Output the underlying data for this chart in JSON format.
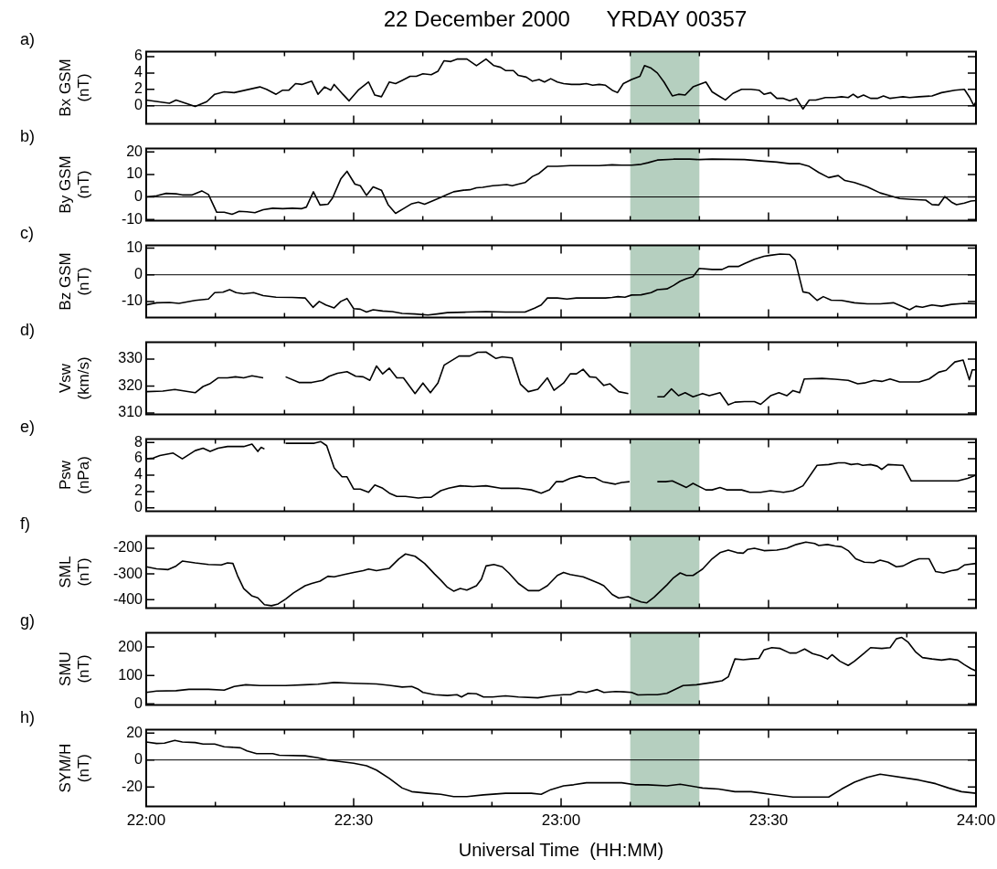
{
  "chart_data": [
    {
      "type": "line",
      "title": "22 December 2000      YRDAY 00357",
      "ylabel": "Bx GSM (nT)",
      "annotations": [
        "a)"
      ],
      "color": "#000000",
      "xlim": [
        22,
        24
      ],
      "ylim": [
        -2.2,
        6.6
      ],
      "yticks": [
        0,
        2,
        4,
        6
      ],
      "tick_labels": "y",
      "xticks": [
        22,
        {
          "value": 22.16667,
          "label": null
        },
        {
          "value": 22.33333,
          "label": null
        },
        22.5,
        {
          "value": 22.66667,
          "label": null
        },
        {
          "value": 22.83333,
          "label": null
        },
        23,
        {
          "value": 23.16667,
          "label": null
        },
        {
          "value": 23.33333,
          "label": null
        },
        23.5,
        {
          "value": 23.66667,
          "label": null
        },
        {
          "value": 23.83333,
          "label": null
        },
        24
      ],
      "bands": [
        {
          "axis": "x",
          "from": 23.16667,
          "to": 23.33333,
          "color": "#b5cfbf"
        }
      ],
      "ref_lines": [
        {
          "axis": "y",
          "value": 0,
          "color": "#000000"
        }
      ],
      "x": [
        22.0,
        22.056,
        22.072,
        22.118,
        22.146,
        22.165,
        22.188,
        22.212,
        22.274,
        22.29,
        22.313,
        22.329,
        22.344,
        22.36,
        22.375,
        22.399,
        22.414,
        22.43,
        22.445,
        22.453,
        22.474,
        22.489,
        22.511,
        22.536,
        22.551,
        22.567,
        22.586,
        22.601,
        22.617,
        22.636,
        22.651,
        22.667,
        22.687,
        22.703,
        22.718,
        22.734,
        22.749,
        22.773,
        22.796,
        22.819,
        22.838,
        22.854,
        22.866,
        22.885,
        22.897,
        22.916,
        22.931,
        22.947,
        22.96,
        22.975,
        22.991,
        23.006,
        23.025,
        23.045,
        23.061,
        23.076,
        23.092,
        23.107,
        23.123,
        23.136,
        23.15,
        23.17,
        23.19,
        23.201,
        23.217,
        23.232,
        23.248,
        23.268,
        23.283,
        23.299,
        23.318,
        23.349,
        23.364,
        23.38,
        23.396,
        23.414,
        23.435,
        23.458,
        23.477,
        23.489,
        23.505,
        23.52,
        23.536,
        23.551,
        23.567,
        23.583,
        23.598,
        23.614,
        23.637,
        23.66,
        23.676,
        23.692,
        23.704,
        23.715,
        23.729,
        23.746,
        23.762,
        23.777,
        23.793,
        23.808,
        23.824,
        23.84,
        23.863,
        23.894,
        23.917,
        23.949,
        23.972,
        23.985,
        23.995,
        24.0
      ],
      "values": [
        0.7,
        0.3,
        0.7,
        -0.1,
        0.5,
        1.4,
        1.7,
        1.6,
        2.3,
        2.0,
        1.4,
        1.9,
        1.9,
        2.7,
        2.6,
        3.0,
        1.4,
        2.3,
        1.9,
        2.6,
        1.4,
        0.6,
        1.9,
        2.9,
        1.3,
        1.1,
        2.9,
        2.7,
        3.1,
        3.6,
        3.6,
        3.9,
        3.8,
        4.2,
        5.5,
        5.4,
        5.7,
        5.7,
        4.9,
        5.7,
        4.9,
        4.7,
        4.3,
        4.3,
        3.7,
        3.5,
        3.0,
        3.2,
        2.9,
        3.3,
        2.9,
        2.7,
        2.6,
        2.6,
        2.7,
        2.5,
        2.6,
        2.5,
        1.9,
        1.6,
        2.7,
        3.2,
        3.6,
        4.9,
        4.6,
        4.0,
        2.9,
        1.2,
        1.4,
        1.3,
        2.3,
        2.9,
        1.7,
        1.2,
        0.7,
        1.5,
        2.0,
        2.0,
        1.9,
        1.4,
        1.6,
        0.9,
        0.9,
        0.6,
        0.9,
        -0.4,
        0.7,
        0.7,
        1.0,
        1.0,
        1.1,
        1.0,
        1.4,
        1.0,
        1.3,
        0.9,
        0.9,
        1.2,
        0.9,
        1.0,
        1.1,
        1.0,
        1.1,
        1.2,
        1.6,
        1.9,
        2.0,
        1.0,
        0.0,
        0.5
      ]
    },
    {
      "type": "line",
      "ylabel": "By GSM (nT)",
      "annotations": [
        "b)"
      ],
      "color": "#000000",
      "xlim": [
        22,
        24
      ],
      "ylim": [
        -10.5,
        21.5
      ],
      "yticks": [
        -10,
        0,
        10,
        20
      ],
      "tick_labels": "y",
      "xticks": [
        22,
        {
          "value": 22.16667,
          "label": null
        },
        {
          "value": 22.33333,
          "label": null
        },
        22.5,
        {
          "value": 22.66667,
          "label": null
        },
        {
          "value": 22.83333,
          "label": null
        },
        23,
        {
          "value": 23.16667,
          "label": null
        },
        {
          "value": 23.33333,
          "label": null
        },
        23.5,
        {
          "value": 23.66667,
          "label": null
        },
        {
          "value": 23.83333,
          "label": null
        },
        24
      ],
      "bands": [
        {
          "axis": "x",
          "from": 23.16667,
          "to": 23.33333,
          "color": "#b5cfbf"
        }
      ],
      "ref_lines": [
        {
          "axis": "y",
          "value": 0,
          "color": "#000000"
        }
      ],
      "x": [
        22.0,
        22.025,
        22.048,
        22.072,
        22.087,
        22.111,
        22.134,
        22.15,
        22.17,
        22.188,
        22.207,
        22.224,
        22.243,
        22.262,
        22.282,
        22.305,
        22.329,
        22.352,
        22.375,
        22.386,
        22.403,
        22.419,
        22.438,
        22.449,
        22.469,
        22.484,
        22.503,
        22.516,
        22.531,
        22.547,
        22.567,
        22.583,
        22.601,
        22.62,
        22.64,
        22.656,
        22.671,
        22.692,
        22.71,
        22.726,
        22.741,
        22.765,
        22.78,
        22.796,
        22.811,
        22.835,
        22.85,
        22.869,
        22.882,
        22.897,
        22.913,
        22.931,
        22.947,
        22.967,
        22.991,
        23.022,
        23.053,
        23.092,
        23.123,
        23.146,
        23.17,
        23.193,
        23.209,
        23.232,
        23.271,
        23.31,
        23.333,
        23.364,
        23.442,
        23.489,
        23.52,
        23.551,
        23.574,
        23.598,
        23.621,
        23.645,
        23.668,
        23.684,
        23.707,
        23.738,
        23.769,
        23.793,
        23.816,
        23.847,
        23.879,
        23.894,
        23.91,
        23.925,
        23.941,
        23.953,
        23.972,
        23.988,
        24.0
      ],
      "values": [
        0,
        0.5,
        1.6,
        1.4,
        0.9,
        0.9,
        2.7,
        1.1,
        -6.8,
        -6.8,
        -7.7,
        -6.4,
        -6.6,
        -7.0,
        -5.7,
        -5.0,
        -5.2,
        -5.0,
        -5.2,
        -4.5,
        2.3,
        -3.6,
        -3.2,
        -0.5,
        8.0,
        11.4,
        5.7,
        5.0,
        0.7,
        4.5,
        3.0,
        -3.4,
        -7.3,
        -5.2,
        -3.0,
        -2.3,
        -3.2,
        -1.6,
        -0.2,
        1.1,
        2.3,
        3.0,
        3.2,
        4.1,
        4.3,
        5.0,
        5.2,
        5.5,
        5.0,
        5.7,
        6.4,
        9.1,
        10.5,
        13.6,
        13.6,
        13.9,
        13.9,
        13.9,
        14.3,
        14.1,
        14.1,
        14.5,
        15.2,
        16.4,
        16.8,
        16.8,
        16.6,
        16.8,
        16.6,
        15.9,
        15.5,
        14.8,
        14.8,
        13.6,
        10.9,
        8.6,
        9.5,
        7.3,
        6.4,
        4.5,
        1.8,
        0.5,
        -0.7,
        -1.1,
        -1.4,
        -3.4,
        -3.6,
        0.2,
        -2.3,
        -3.4,
        -2.7,
        -1.8,
        -1.6
      ]
    },
    {
      "type": "line",
      "ylabel": "Bz GSM (nT)",
      "annotations": [
        "c)"
      ],
      "color": "#000000",
      "xlim": [
        22,
        24
      ],
      "ylim": [
        -16,
        11
      ],
      "yticks": [
        -10,
        0,
        10
      ],
      "tick_labels": "y",
      "xticks": [
        22,
        {
          "value": 22.16667,
          "label": null
        },
        {
          "value": 22.33333,
          "label": null
        },
        22.5,
        {
          "value": 22.66667,
          "label": null
        },
        {
          "value": 22.83333,
          "label": null
        },
        23,
        {
          "value": 23.16667,
          "label": null
        },
        {
          "value": 23.33333,
          "label": null
        },
        23.5,
        {
          "value": 23.66667,
          "label": null
        },
        {
          "value": 23.83333,
          "label": null
        },
        24
      ],
      "bands": [
        {
          "axis": "x",
          "from": 23.16667,
          "to": 23.33333,
          "color": "#b5cfbf"
        }
      ],
      "ref_lines": [
        {
          "axis": "y",
          "value": 0,
          "color": "#000000"
        }
      ],
      "x": [
        22.0,
        22.025,
        22.056,
        22.079,
        22.118,
        22.15,
        22.165,
        22.185,
        22.201,
        22.217,
        22.235,
        22.259,
        22.282,
        22.313,
        22.352,
        22.383,
        22.402,
        22.417,
        22.433,
        22.453,
        22.469,
        22.484,
        22.5,
        22.516,
        22.531,
        22.547,
        22.57,
        22.593,
        22.617,
        22.648,
        22.679,
        22.701,
        22.726,
        22.773,
        22.819,
        22.866,
        22.913,
        22.936,
        22.952,
        22.967,
        22.991,
        23.014,
        23.037,
        23.084,
        23.107,
        23.123,
        23.137,
        23.154,
        23.17,
        23.193,
        23.217,
        23.232,
        23.255,
        23.271,
        23.287,
        23.302,
        23.318,
        23.333,
        23.364,
        23.388,
        23.403,
        23.427,
        23.442,
        23.466,
        23.489,
        23.505,
        23.528,
        23.551,
        23.564,
        23.583,
        23.598,
        23.617,
        23.632,
        23.651,
        23.676,
        23.707,
        23.738,
        23.769,
        23.801,
        23.824,
        23.84,
        23.855,
        23.871,
        23.894,
        23.917,
        23.941,
        23.972,
        24.0
      ],
      "values": [
        -11.3,
        -10.5,
        -10.4,
        -10.7,
        -9.6,
        -9.1,
        -6.7,
        -6.5,
        -5.6,
        -6.7,
        -7.1,
        -6.7,
        -7.8,
        -8.4,
        -8.5,
        -8.7,
        -12.2,
        -10.0,
        -11.3,
        -12.4,
        -10.0,
        -8.9,
        -12.7,
        -12.9,
        -14.0,
        -13.1,
        -13.6,
        -13.8,
        -14.5,
        -14.7,
        -15.1,
        -14.7,
        -14.2,
        -14.0,
        -13.8,
        -14.0,
        -14.0,
        -12.5,
        -11.3,
        -8.7,
        -8.7,
        -9.1,
        -8.7,
        -8.7,
        -8.7,
        -8.5,
        -8.2,
        -8.4,
        -7.6,
        -7.5,
        -6.7,
        -5.6,
        -5.3,
        -4.0,
        -2.4,
        -1.5,
        -0.7,
        2.4,
        2.0,
        2.0,
        3.1,
        3.1,
        4.2,
        5.8,
        6.9,
        7.3,
        7.8,
        7.6,
        5.5,
        -6.4,
        -6.9,
        -9.6,
        -8.2,
        -9.5,
        -9.6,
        -10.5,
        -10.9,
        -10.9,
        -10.5,
        -12.0,
        -13.1,
        -11.8,
        -12.2,
        -11.3,
        -11.8,
        -11.1,
        -10.7,
        -10.9
      ]
    },
    {
      "type": "line",
      "ylabel": "Vsw (km/s)",
      "annotations": [
        "d)"
      ],
      "color": "#000000",
      "xlim": [
        22,
        24
      ],
      "ylim": [
        309.5,
        336.2
      ],
      "yticks": [
        310,
        320,
        330
      ],
      "tick_labels": "y",
      "xticks": [
        22,
        {
          "value": 22.16667,
          "label": null
        },
        {
          "value": 22.33333,
          "label": null
        },
        22.5,
        {
          "value": 22.66667,
          "label": null
        },
        {
          "value": 22.83333,
          "label": null
        },
        23,
        {
          "value": 23.16667,
          "label": null
        },
        {
          "value": 23.33333,
          "label": null
        },
        23.5,
        {
          "value": 23.66667,
          "label": null
        },
        {
          "value": 23.83333,
          "label": null
        },
        24
      ],
      "bands": [
        {
          "axis": "x",
          "from": 23.16667,
          "to": 23.33333,
          "color": "#b5cfbf"
        }
      ],
      "x": [
        22.0,
        22.04,
        22.069,
        22.118,
        22.137,
        22.153,
        22.173,
        22.196,
        22.215,
        22.235,
        22.255,
        22.282,
        22.3,
        22.336,
        22.368,
        22.399,
        22.425,
        22.441,
        22.461,
        22.484,
        22.505,
        22.523,
        22.539,
        22.555,
        22.57,
        22.586,
        22.604,
        22.62,
        22.648,
        22.667,
        22.685,
        22.703,
        22.718,
        22.754,
        22.78,
        22.799,
        22.819,
        22.843,
        22.858,
        22.882,
        22.902,
        22.921,
        22.944,
        22.967,
        22.983,
        23.006,
        23.022,
        23.037,
        23.053,
        23.069,
        23.084,
        23.103,
        23.118,
        23.139,
        23.162,
        23.18,
        23.232,
        23.248,
        23.266,
        23.283,
        23.299,
        23.318,
        23.341,
        23.357,
        23.383,
        23.403,
        23.419,
        23.442,
        23.466,
        23.481,
        23.505,
        23.525,
        23.544,
        23.559,
        23.575,
        23.586,
        23.629,
        23.66,
        23.692,
        23.715,
        23.731,
        23.754,
        23.773,
        23.793,
        23.816,
        23.863,
        23.887,
        23.91,
        23.928,
        23.949,
        23.969,
        23.984,
        23.991,
        24.0
      ],
      "values": [
        317.9,
        318.1,
        318.7,
        317.5,
        319.8,
        320.8,
        323.0,
        323.0,
        323.4,
        323.0,
        323.8,
        323.0,
        null,
        323.4,
        321.3,
        321.3,
        322.1,
        323.6,
        324.7,
        325.3,
        323.6,
        323.4,
        322.1,
        327.4,
        324.5,
        326.6,
        323.0,
        323.0,
        317.2,
        321.1,
        317.5,
        321.1,
        327.7,
        331.1,
        331.1,
        332.5,
        332.6,
        330.2,
        330.8,
        330.4,
        320.7,
        317.9,
        318.8,
        323.0,
        318.4,
        321.1,
        324.5,
        324.5,
        326.2,
        323.4,
        323.2,
        320.2,
        320.8,
        317.9,
        317.2,
        null,
        316.0,
        316.0,
        318.9,
        316.4,
        317.5,
        316.0,
        317.2,
        316.4,
        317.5,
        313.0,
        314.0,
        314.2,
        314.2,
        313.2,
        316.4,
        317.5,
        316.4,
        318.3,
        317.5,
        322.6,
        322.8,
        322.5,
        322.1,
        320.8,
        321.1,
        322.1,
        321.7,
        322.6,
        321.5,
        321.5,
        322.6,
        325.1,
        325.8,
        328.9,
        329.6,
        322.3,
        326.0,
        326.0
      ]
    },
    {
      "type": "line",
      "ylabel": "Psw (nPa)",
      "annotations": [
        "e)"
      ],
      "color": "#000000",
      "xlim": [
        22,
        24
      ],
      "ylim": [
        -0.4,
        8.4
      ],
      "yticks": [
        0,
        2,
        4,
        6,
        8
      ],
      "tick_labels": "y",
      "xticks": [
        22,
        {
          "value": 22.16667,
          "label": null
        },
        {
          "value": 22.33333,
          "label": null
        },
        22.5,
        {
          "value": 22.66667,
          "label": null
        },
        {
          "value": 22.83333,
          "label": null
        },
        23,
        {
          "value": 23.16667,
          "label": null
        },
        {
          "value": 23.33333,
          "label": null
        },
        23.5,
        {
          "value": 23.66667,
          "label": null
        },
        {
          "value": 23.83333,
          "label": null
        },
        24
      ],
      "bands": [
        {
          "axis": "x",
          "from": 23.16667,
          "to": 23.33333,
          "color": "#b5cfbf"
        }
      ],
      "x": [
        22.0,
        22.017,
        22.033,
        22.065,
        22.087,
        22.118,
        22.137,
        22.154,
        22.173,
        22.196,
        22.235,
        22.255,
        22.269,
        22.277,
        22.285,
        22.3,
        22.336,
        22.375,
        22.405,
        22.421,
        22.435,
        22.453,
        22.472,
        22.484,
        22.5,
        22.516,
        22.536,
        22.551,
        22.57,
        22.586,
        22.604,
        22.625,
        22.656,
        22.671,
        22.687,
        22.71,
        22.729,
        22.757,
        22.788,
        22.819,
        22.854,
        22.897,
        22.928,
        22.952,
        22.972,
        22.988,
        23.003,
        23.022,
        23.045,
        23.061,
        23.081,
        23.1,
        23.131,
        23.146,
        23.165,
        23.18,
        23.232,
        23.252,
        23.268,
        23.302,
        23.318,
        23.349,
        23.364,
        23.383,
        23.399,
        23.435,
        23.455,
        23.481,
        23.505,
        23.536,
        23.559,
        23.583,
        23.617,
        23.645,
        23.668,
        23.684,
        23.699,
        23.715,
        23.727,
        23.746,
        23.762,
        23.773,
        23.788,
        23.824,
        23.844,
        23.894,
        23.956,
        23.98,
        24.0
      ],
      "values": [
        6.0,
        6.1,
        6.4,
        6.7,
        6.0,
        7.0,
        7.3,
        6.9,
        7.3,
        7.5,
        7.5,
        7.8,
        6.9,
        7.4,
        7.2,
        null,
        7.9,
        7.9,
        7.9,
        8.1,
        7.6,
        4.9,
        3.8,
        3.8,
        2.3,
        2.3,
        1.9,
        2.8,
        2.4,
        1.8,
        1.4,
        1.4,
        1.2,
        1.3,
        1.3,
        2.1,
        2.4,
        2.7,
        2.6,
        2.7,
        2.4,
        2.4,
        2.2,
        1.8,
        2.2,
        3.2,
        3.2,
        3.6,
        3.9,
        3.7,
        3.7,
        3.2,
        2.9,
        3.1,
        3.2,
        null,
        3.2,
        3.2,
        3.3,
        2.5,
        3.0,
        2.2,
        2.2,
        2.5,
        2.2,
        2.2,
        1.9,
        1.9,
        2.1,
        1.9,
        2.1,
        2.7,
        5.2,
        5.3,
        5.5,
        5.5,
        5.3,
        5.4,
        5.2,
        5.3,
        5.1,
        4.7,
        5.3,
        5.2,
        3.3,
        3.3,
        3.3,
        3.6,
        4.0
      ]
    },
    {
      "type": "line",
      "ylabel": "SML (nT)",
      "annotations": [
        "f)"
      ],
      "color": "#000000",
      "xlim": [
        22,
        24
      ],
      "ylim": [
        -433,
        -152
      ],
      "yticks": [
        -400,
        -300,
        -200
      ],
      "tick_labels": "y",
      "xticks": [
        22,
        {
          "value": 22.16667,
          "label": null
        },
        {
          "value": 22.33333,
          "label": null
        },
        22.5,
        {
          "value": 22.66667,
          "label": null
        },
        {
          "value": 22.83333,
          "label": null
        },
        23,
        {
          "value": 23.16667,
          "label": null
        },
        {
          "value": 23.33333,
          "label": null
        },
        23.5,
        {
          "value": 23.66667,
          "label": null
        },
        {
          "value": 23.83333,
          "label": null
        },
        24
      ],
      "bands": [
        {
          "axis": "x",
          "from": 23.16667,
          "to": 23.33333,
          "color": "#b5cfbf"
        }
      ],
      "x": [
        22.0,
        22.025,
        22.053,
        22.072,
        22.087,
        22.118,
        22.15,
        22.181,
        22.196,
        22.209,
        22.22,
        22.235,
        22.254,
        22.269,
        22.285,
        22.302,
        22.318,
        22.336,
        22.355,
        22.383,
        22.399,
        22.419,
        22.438,
        22.453,
        22.477,
        22.5,
        22.523,
        22.536,
        22.555,
        22.586,
        22.609,
        22.625,
        22.648,
        22.671,
        22.695,
        22.71,
        22.726,
        22.741,
        22.757,
        22.773,
        22.796,
        22.808,
        22.819,
        22.838,
        22.858,
        22.874,
        22.897,
        22.921,
        22.947,
        22.967,
        22.991,
        23.006,
        23.022,
        23.053,
        23.072,
        23.092,
        23.103,
        23.123,
        23.139,
        23.162,
        23.178,
        23.193,
        23.206,
        23.224,
        23.255,
        23.271,
        23.287,
        23.302,
        23.318,
        23.341,
        23.364,
        23.383,
        23.403,
        23.424,
        23.439,
        23.45,
        23.466,
        23.489,
        23.52,
        23.544,
        23.567,
        23.59,
        23.611,
        23.621,
        23.642,
        23.66,
        23.676,
        23.692,
        23.71,
        23.731,
        23.754,
        23.769,
        23.788,
        23.808,
        23.824,
        23.847,
        23.863,
        23.887,
        23.903,
        23.922,
        23.941,
        23.956,
        23.972,
        24.0
      ],
      "values": [
        -272,
        -280,
        -283,
        -269,
        -250,
        -257,
        -263,
        -265,
        -257,
        -259,
        -306,
        -357,
        -385,
        -393,
        -420,
        -424,
        -417,
        -398,
        -374,
        -346,
        -337,
        -328,
        -309,
        -311,
        -302,
        -294,
        -287,
        -281,
        -287,
        -278,
        -241,
        -222,
        -231,
        -259,
        -300,
        -324,
        -352,
        -367,
        -357,
        -363,
        -346,
        -320,
        -269,
        -263,
        -272,
        -296,
        -337,
        -365,
        -365,
        -346,
        -306,
        -294,
        -302,
        -311,
        -324,
        -337,
        -346,
        -380,
        -394,
        -389,
        -400,
        -409,
        -413,
        -391,
        -343,
        -315,
        -296,
        -306,
        -306,
        -281,
        -241,
        -217,
        -207,
        -217,
        -219,
        -204,
        -200,
        -209,
        -207,
        -200,
        -185,
        -176,
        -181,
        -189,
        -185,
        -191,
        -194,
        -209,
        -241,
        -254,
        -256,
        -246,
        -254,
        -272,
        -269,
        -250,
        -241,
        -241,
        -291,
        -296,
        -287,
        -283,
        -265,
        -259
      ]
    },
    {
      "type": "line",
      "ylabel": "SMU (nT)",
      "annotations": [
        "g)"
      ],
      "color": "#000000",
      "xlim": [
        22,
        24
      ],
      "ylim": [
        -4,
        250
      ],
      "yticks": [
        0,
        100,
        200
      ],
      "tick_labels": "y",
      "xticks": [
        22,
        {
          "value": 22.16667,
          "label": null
        },
        {
          "value": 22.33333,
          "label": null
        },
        22.5,
        {
          "value": 22.66667,
          "label": null
        },
        {
          "value": 22.83333,
          "label": null
        },
        23,
        {
          "value": 23.16667,
          "label": null
        },
        {
          "value": 23.33333,
          "label": null
        },
        23.5,
        {
          "value": 23.66667,
          "label": null
        },
        {
          "value": 23.83333,
          "label": null
        },
        24
      ],
      "bands": [
        {
          "axis": "x",
          "from": 23.16667,
          "to": 23.33333,
          "color": "#b5cfbf"
        }
      ],
      "x": [
        22.0,
        22.025,
        22.072,
        22.103,
        22.15,
        22.188,
        22.212,
        22.24,
        22.274,
        22.336,
        22.383,
        22.414,
        22.453,
        22.5,
        22.555,
        22.586,
        22.617,
        22.64,
        22.656,
        22.667,
        22.695,
        22.726,
        22.749,
        22.76,
        22.776,
        22.796,
        22.813,
        22.835,
        22.866,
        22.897,
        22.944,
        22.975,
        23.006,
        23.022,
        23.042,
        23.061,
        23.087,
        23.103,
        23.131,
        23.151,
        23.17,
        23.185,
        23.209,
        23.232,
        23.255,
        23.271,
        23.294,
        23.326,
        23.364,
        23.388,
        23.403,
        23.419,
        23.439,
        23.458,
        23.477,
        23.489,
        23.508,
        23.528,
        23.551,
        23.567,
        23.587,
        23.606,
        23.626,
        23.642,
        23.653,
        23.672,
        23.692,
        23.707,
        23.731,
        23.746,
        23.773,
        23.793,
        23.808,
        23.821,
        23.836,
        23.855,
        23.871,
        23.894,
        23.917,
        23.937,
        23.956,
        23.972,
        23.988,
        24.0
      ],
      "values": [
        40,
        45,
        46,
        51,
        51,
        48,
        61,
        67,
        64,
        64,
        67,
        69,
        75,
        72,
        70,
        65,
        59,
        61,
        51,
        40,
        32,
        29,
        32,
        24,
        37,
        35,
        24,
        24,
        28,
        24,
        21,
        28,
        32,
        32,
        43,
        40,
        50,
        40,
        43,
        42,
        40,
        31,
        32,
        32,
        37,
        48,
        64,
        67,
        75,
        81,
        95,
        158,
        155,
        158,
        160,
        190,
        198,
        195,
        179,
        179,
        193,
        177,
        169,
        158,
        173,
        150,
        135,
        150,
        179,
        198,
        195,
        198,
        229,
        234,
        218,
        182,
        163,
        158,
        154,
        158,
        154,
        138,
        124,
        116
      ]
    },
    {
      "type": "line",
      "ylabel": "SYM/H (nT)",
      "xlabel": "Universal Time  (HH:MM)",
      "annotations": [
        "h)"
      ],
      "color": "#000000",
      "xlim": [
        22,
        24
      ],
      "ylim": [
        -34.5,
        22.4
      ],
      "yticks": [
        -20,
        0,
        20
      ],
      "xticks": [
        {
          "value": 22,
          "label": "22:00"
        },
        {
          "value": 22.16667,
          "label": null
        },
        {
          "value": 22.33333,
          "label": null
        },
        {
          "value": 22.5,
          "label": "22:30"
        },
        {
          "value": 22.66667,
          "label": null
        },
        {
          "value": 22.83333,
          "label": null
        },
        {
          "value": 23,
          "label": "23:00"
        },
        {
          "value": 23.16667,
          "label": null
        },
        {
          "value": 23.33333,
          "label": null
        },
        {
          "value": 23.5,
          "label": "23:30"
        },
        {
          "value": 23.66667,
          "label": null
        },
        {
          "value": 23.83333,
          "label": null
        },
        {
          "value": 24,
          "label": "24:00"
        }
      ],
      "bands": [
        {
          "axis": "x",
          "from": 23.16667,
          "to": 23.33333,
          "color": "#b5cfbf"
        }
      ],
      "ref_lines": [
        {
          "axis": "y",
          "value": 0,
          "color": "#000000"
        }
      ],
      "x": [
        22.0,
        22.025,
        22.044,
        22.069,
        22.087,
        22.118,
        22.137,
        22.165,
        22.188,
        22.227,
        22.243,
        22.266,
        22.305,
        22.321,
        22.383,
        22.414,
        22.438,
        22.469,
        22.5,
        22.531,
        22.555,
        22.586,
        22.617,
        22.64,
        22.679,
        22.71,
        22.741,
        22.773,
        22.813,
        22.866,
        22.928,
        22.952,
        22.975,
        23.006,
        23.03,
        23.061,
        23.146,
        23.178,
        23.209,
        23.255,
        23.287,
        23.341,
        23.38,
        23.419,
        23.458,
        23.505,
        23.559,
        23.645,
        23.676,
        23.707,
        23.738,
        23.769,
        23.863,
        23.903,
        23.934,
        23.965,
        24.0
      ],
      "values": [
        13.3,
        12.2,
        12.5,
        14.5,
        13.3,
        12.9,
        11.8,
        11.8,
        9.8,
        9.0,
        6.7,
        4.7,
        4.7,
        3.5,
        3.1,
        1.6,
        0,
        -1.2,
        -2.4,
        -4.3,
        -7.5,
        -13.7,
        -20.8,
        -23.5,
        -24.7,
        -25.5,
        -27.1,
        -27.1,
        -25.9,
        -24.7,
        -24.7,
        -25.5,
        -22.0,
        -19.2,
        -18.4,
        -16.9,
        -16.9,
        -18.4,
        -18.4,
        -19.2,
        -18.0,
        -20.8,
        -21.6,
        -23.5,
        -23.5,
        -25.5,
        -27.5,
        -27.5,
        -21.6,
        -16.5,
        -12.9,
        -10.6,
        -14.9,
        -17.6,
        -20.8,
        -23.5,
        -24.7
      ]
    }
  ]
}
